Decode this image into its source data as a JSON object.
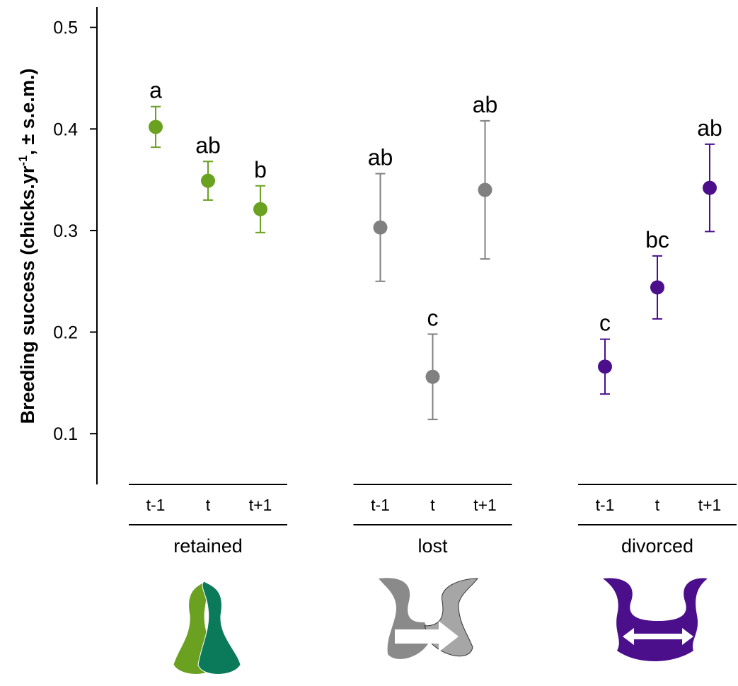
{
  "chart_data": {
    "type": "errorbar",
    "ylabel": "Breeding success (chicks.yr",
    "ylabel_sup": "-1",
    "ylabel_end": ", ± s.e.m.)",
    "categories": [
      "t-1",
      "t",
      "t+1"
    ],
    "ylim": [
      0.05,
      0.52
    ],
    "yticks": [
      0.1,
      0.2,
      0.3,
      0.4,
      0.5
    ],
    "series": [
      {
        "name": "retained",
        "color": "#6aa121",
        "values": [
          0.402,
          0.349,
          0.321
        ],
        "errors": [
          0.02,
          0.019,
          0.023
        ],
        "letters": [
          "a",
          "ab",
          "b"
        ]
      },
      {
        "name": "lost",
        "color": "#808080",
        "values": [
          0.303,
          0.156,
          0.34
        ],
        "errors": [
          0.053,
          0.042,
          0.068
        ],
        "letters": [
          "ab",
          "c",
          "ab"
        ]
      },
      {
        "name": "divorced",
        "color": "#4b0f8c",
        "values": [
          0.166,
          0.244,
          0.342
        ],
        "errors": [
          0.027,
          0.031,
          0.043
        ],
        "letters": [
          "c",
          "bc",
          "ab"
        ]
      }
    ]
  }
}
